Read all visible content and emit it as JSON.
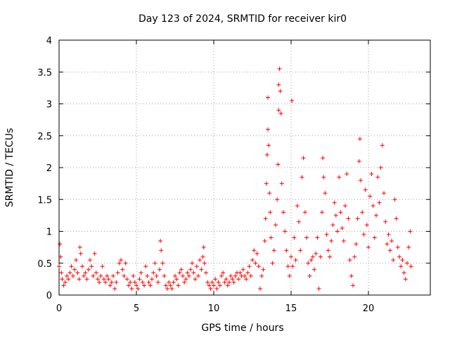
{
  "chart_data": {
    "type": "scatter",
    "title": "Day 123 of 2024, SRMTID for receiver kir0",
    "xlabel": "GPS time / hours",
    "ylabel": "SRMTID / TECUs",
    "xlim": [
      0,
      24
    ],
    "ylim": [
      0,
      4
    ],
    "x_ticks": [
      0,
      5,
      10,
      15,
      20
    ],
    "x_tick_labels": [
      "0",
      "5",
      "10",
      "15",
      "20"
    ],
    "y_ticks": [
      0,
      0.5,
      1,
      1.5,
      2,
      2.5,
      3,
      3.5,
      4
    ],
    "y_tick_labels": [
      "0",
      "0.5",
      "1",
      "1.5",
      "2",
      "2.5",
      "3",
      "3.5",
      "4"
    ],
    "grid": true,
    "marker": "+",
    "series": [
      {
        "name": "SRMTID",
        "color": "#ff0000",
        "points": [
          [
            0.0,
            0.45
          ],
          [
            0.05,
            0.8
          ],
          [
            0.1,
            0.6
          ],
          [
            0.15,
            0.35
          ],
          [
            0.2,
            0.25
          ],
          [
            0.3,
            0.15
          ],
          [
            0.4,
            0.2
          ],
          [
            0.5,
            0.3
          ],
          [
            0.6,
            0.25
          ],
          [
            0.7,
            0.35
          ],
          [
            0.8,
            0.45
          ],
          [
            0.9,
            0.3
          ],
          [
            1.0,
            0.4
          ],
          [
            1.1,
            0.55
          ],
          [
            1.2,
            0.35
          ],
          [
            1.3,
            0.25
          ],
          [
            1.35,
            0.75
          ],
          [
            1.4,
            0.65
          ],
          [
            1.5,
            0.45
          ],
          [
            1.6,
            0.3
          ],
          [
            1.7,
            0.35
          ],
          [
            1.8,
            0.25
          ],
          [
            1.9,
            0.4
          ],
          [
            2.0,
            0.55
          ],
          [
            2.1,
            0.45
          ],
          [
            2.2,
            0.3
          ],
          [
            2.3,
            0.65
          ],
          [
            2.4,
            0.35
          ],
          [
            2.5,
            0.25
          ],
          [
            2.6,
            0.2
          ],
          [
            2.7,
            0.3
          ],
          [
            2.8,
            0.45
          ],
          [
            2.9,
            0.25
          ],
          [
            3.0,
            0.2
          ],
          [
            3.1,
            0.3
          ],
          [
            3.2,
            0.25
          ],
          [
            3.3,
            0.15
          ],
          [
            3.4,
            0.2
          ],
          [
            3.5,
            0.3
          ],
          [
            3.6,
            0.1
          ],
          [
            3.7,
            0.2
          ],
          [
            3.8,
            0.35
          ],
          [
            3.9,
            0.5
          ],
          [
            4.0,
            0.55
          ],
          [
            4.1,
            0.4
          ],
          [
            4.2,
            0.3
          ],
          [
            4.3,
            0.5
          ],
          [
            4.4,
            0.25
          ],
          [
            4.5,
            0.15
          ],
          [
            4.6,
            0.2
          ],
          [
            4.7,
            0.1
          ],
          [
            4.8,
            0.3
          ],
          [
            4.9,
            0.2
          ],
          [
            5.0,
            0.15
          ],
          [
            5.1,
            0.1
          ],
          [
            5.2,
            0.25
          ],
          [
            5.3,
            0.35
          ],
          [
            5.4,
            0.2
          ],
          [
            5.5,
            0.15
          ],
          [
            5.6,
            0.45
          ],
          [
            5.7,
            0.3
          ],
          [
            5.8,
            0.2
          ],
          [
            5.9,
            0.15
          ],
          [
            6.0,
            0.25
          ],
          [
            6.1,
            0.35
          ],
          [
            6.2,
            0.5
          ],
          [
            6.3,
            0.3
          ],
          [
            6.4,
            0.2
          ],
          [
            6.5,
            0.4
          ],
          [
            6.55,
            0.85
          ],
          [
            6.6,
            0.7
          ],
          [
            6.7,
            0.5
          ],
          [
            6.8,
            0.3
          ],
          [
            6.9,
            0.15
          ],
          [
            7.0,
            0.1
          ],
          [
            7.1,
            0.2
          ],
          [
            7.2,
            0.15
          ],
          [
            7.3,
            0.1
          ],
          [
            7.4,
            0.2
          ],
          [
            7.5,
            0.3
          ],
          [
            7.6,
            0.25
          ],
          [
            7.7,
            0.15
          ],
          [
            7.8,
            0.35
          ],
          [
            7.9,
            0.4
          ],
          [
            8.0,
            0.3
          ],
          [
            8.1,
            0.2
          ],
          [
            8.2,
            0.25
          ],
          [
            8.3,
            0.35
          ],
          [
            8.4,
            0.3
          ],
          [
            8.5,
            0.4
          ],
          [
            8.6,
            0.5
          ],
          [
            8.7,
            0.35
          ],
          [
            8.8,
            0.25
          ],
          [
            8.9,
            0.45
          ],
          [
            9.0,
            0.3
          ],
          [
            9.1,
            0.55
          ],
          [
            9.2,
            0.4
          ],
          [
            9.3,
            0.6
          ],
          [
            9.35,
            0.75
          ],
          [
            9.4,
            0.5
          ],
          [
            9.5,
            0.35
          ],
          [
            9.6,
            0.2
          ],
          [
            9.7,
            0.15
          ],
          [
            9.8,
            0.1
          ],
          [
            9.9,
            0.2
          ],
          [
            10.0,
            0.15
          ],
          [
            10.1,
            0.25
          ],
          [
            10.2,
            0.1
          ],
          [
            10.3,
            0.2
          ],
          [
            10.4,
            0.15
          ],
          [
            10.5,
            0.3
          ],
          [
            10.6,
            0.35
          ],
          [
            10.7,
            0.2
          ],
          [
            10.8,
            0.25
          ],
          [
            10.9,
            0.15
          ],
          [
            11.0,
            0.2
          ],
          [
            11.1,
            0.3
          ],
          [
            11.2,
            0.25
          ],
          [
            11.3,
            0.2
          ],
          [
            11.4,
            0.3
          ],
          [
            11.5,
            0.35
          ],
          [
            11.6,
            0.25
          ],
          [
            11.7,
            0.35
          ],
          [
            11.8,
            0.3
          ],
          [
            11.9,
            0.4
          ],
          [
            12.0,
            0.3
          ],
          [
            12.1,
            0.25
          ],
          [
            12.2,
            0.35
          ],
          [
            12.3,
            0.45
          ],
          [
            12.4,
            0.3
          ],
          [
            12.5,
            0.55
          ],
          [
            12.6,
            0.7
          ],
          [
            12.7,
            0.5
          ],
          [
            12.8,
            0.65
          ],
          [
            12.9,
            0.45
          ],
          [
            13.0,
            0.1
          ],
          [
            13.1,
            0.3
          ],
          [
            13.2,
            0.4
          ],
          [
            13.3,
            0.85
          ],
          [
            13.35,
            1.2
          ],
          [
            13.4,
            1.75
          ],
          [
            13.45,
            2.2
          ],
          [
            13.5,
            3.1
          ],
          [
            13.5,
            2.6
          ],
          [
            13.55,
            2.35
          ],
          [
            13.6,
            1.6
          ],
          [
            13.65,
            1.3
          ],
          [
            13.7,
            0.9
          ],
          [
            13.8,
            0.5
          ],
          [
            13.9,
            0.7
          ],
          [
            14.0,
            1.1
          ],
          [
            14.1,
            1.5
          ],
          [
            14.15,
            2.05
          ],
          [
            14.2,
            2.9
          ],
          [
            14.2,
            3.3
          ],
          [
            14.25,
            3.55
          ],
          [
            14.3,
            3.2
          ],
          [
            14.35,
            2.85
          ],
          [
            14.4,
            1.75
          ],
          [
            14.5,
            1.3
          ],
          [
            14.6,
            1.0
          ],
          [
            14.7,
            0.7
          ],
          [
            14.8,
            0.45
          ],
          [
            14.9,
            0.3
          ],
          [
            15.0,
            0.6
          ],
          [
            15.05,
            3.05
          ],
          [
            15.1,
            0.45
          ],
          [
            15.2,
            0.9
          ],
          [
            15.3,
            0.55
          ],
          [
            15.4,
            1.4
          ],
          [
            15.5,
            1.15
          ],
          [
            15.6,
            0.7
          ],
          [
            15.7,
            1.85
          ],
          [
            15.8,
            2.15
          ],
          [
            15.9,
            1.3
          ],
          [
            16.0,
            0.9
          ],
          [
            16.1,
            0.5
          ],
          [
            16.2,
            0.3
          ],
          [
            16.3,
            0.55
          ],
          [
            16.4,
            0.6
          ],
          [
            16.5,
            0.4
          ],
          [
            16.6,
            0.65
          ],
          [
            16.7,
            0.9
          ],
          [
            16.8,
            0.1
          ],
          [
            16.9,
            0.6
          ],
          [
            17.0,
            1.3
          ],
          [
            17.05,
            2.15
          ],
          [
            17.1,
            1.85
          ],
          [
            17.2,
            1.6
          ],
          [
            17.3,
            0.95
          ],
          [
            17.4,
            0.7
          ],
          [
            17.5,
            0.6
          ],
          [
            17.6,
            0.85
          ],
          [
            17.7,
            1.1
          ],
          [
            17.8,
            1.45
          ],
          [
            17.9,
            1.25
          ],
          [
            18.0,
            1.0
          ],
          [
            18.1,
            1.85
          ],
          [
            18.2,
            1.3
          ],
          [
            18.3,
            1.05
          ],
          [
            18.4,
            0.85
          ],
          [
            18.5,
            1.4
          ],
          [
            18.6,
            1.9
          ],
          [
            18.7,
            1.2
          ],
          [
            18.8,
            0.55
          ],
          [
            18.9,
            0.3
          ],
          [
            19.0,
            0.15
          ],
          [
            19.1,
            0.6
          ],
          [
            19.2,
            0.8
          ],
          [
            19.3,
            1.2
          ],
          [
            19.4,
            2.1
          ],
          [
            19.45,
            2.45
          ],
          [
            19.5,
            1.8
          ],
          [
            19.6,
            1.3
          ],
          [
            19.7,
            0.95
          ],
          [
            19.8,
            1.65
          ],
          [
            19.9,
            1.1
          ],
          [
            20.0,
            0.75
          ],
          [
            20.1,
            1.55
          ],
          [
            20.2,
            1.9
          ],
          [
            20.3,
            1.4
          ],
          [
            20.4,
            0.9
          ],
          [
            20.5,
            1.25
          ],
          [
            20.6,
            1.85
          ],
          [
            20.7,
            1.45
          ],
          [
            20.8,
            2.0
          ],
          [
            20.9,
            2.35
          ],
          [
            21.0,
            1.6
          ],
          [
            21.1,
            1.15
          ],
          [
            21.2,
            0.8
          ],
          [
            21.3,
            0.95
          ],
          [
            21.4,
            0.7
          ],
          [
            21.5,
            0.85
          ],
          [
            21.6,
            0.55
          ],
          [
            21.7,
            1.5
          ],
          [
            21.8,
            1.2
          ],
          [
            21.9,
            0.75
          ],
          [
            22.0,
            0.6
          ],
          [
            22.1,
            0.45
          ],
          [
            22.2,
            0.55
          ],
          [
            22.3,
            0.35
          ],
          [
            22.4,
            0.25
          ],
          [
            22.5,
            0.5
          ],
          [
            22.6,
            0.75
          ],
          [
            22.7,
            1.0
          ],
          [
            22.75,
            0.45
          ]
        ]
      }
    ]
  }
}
